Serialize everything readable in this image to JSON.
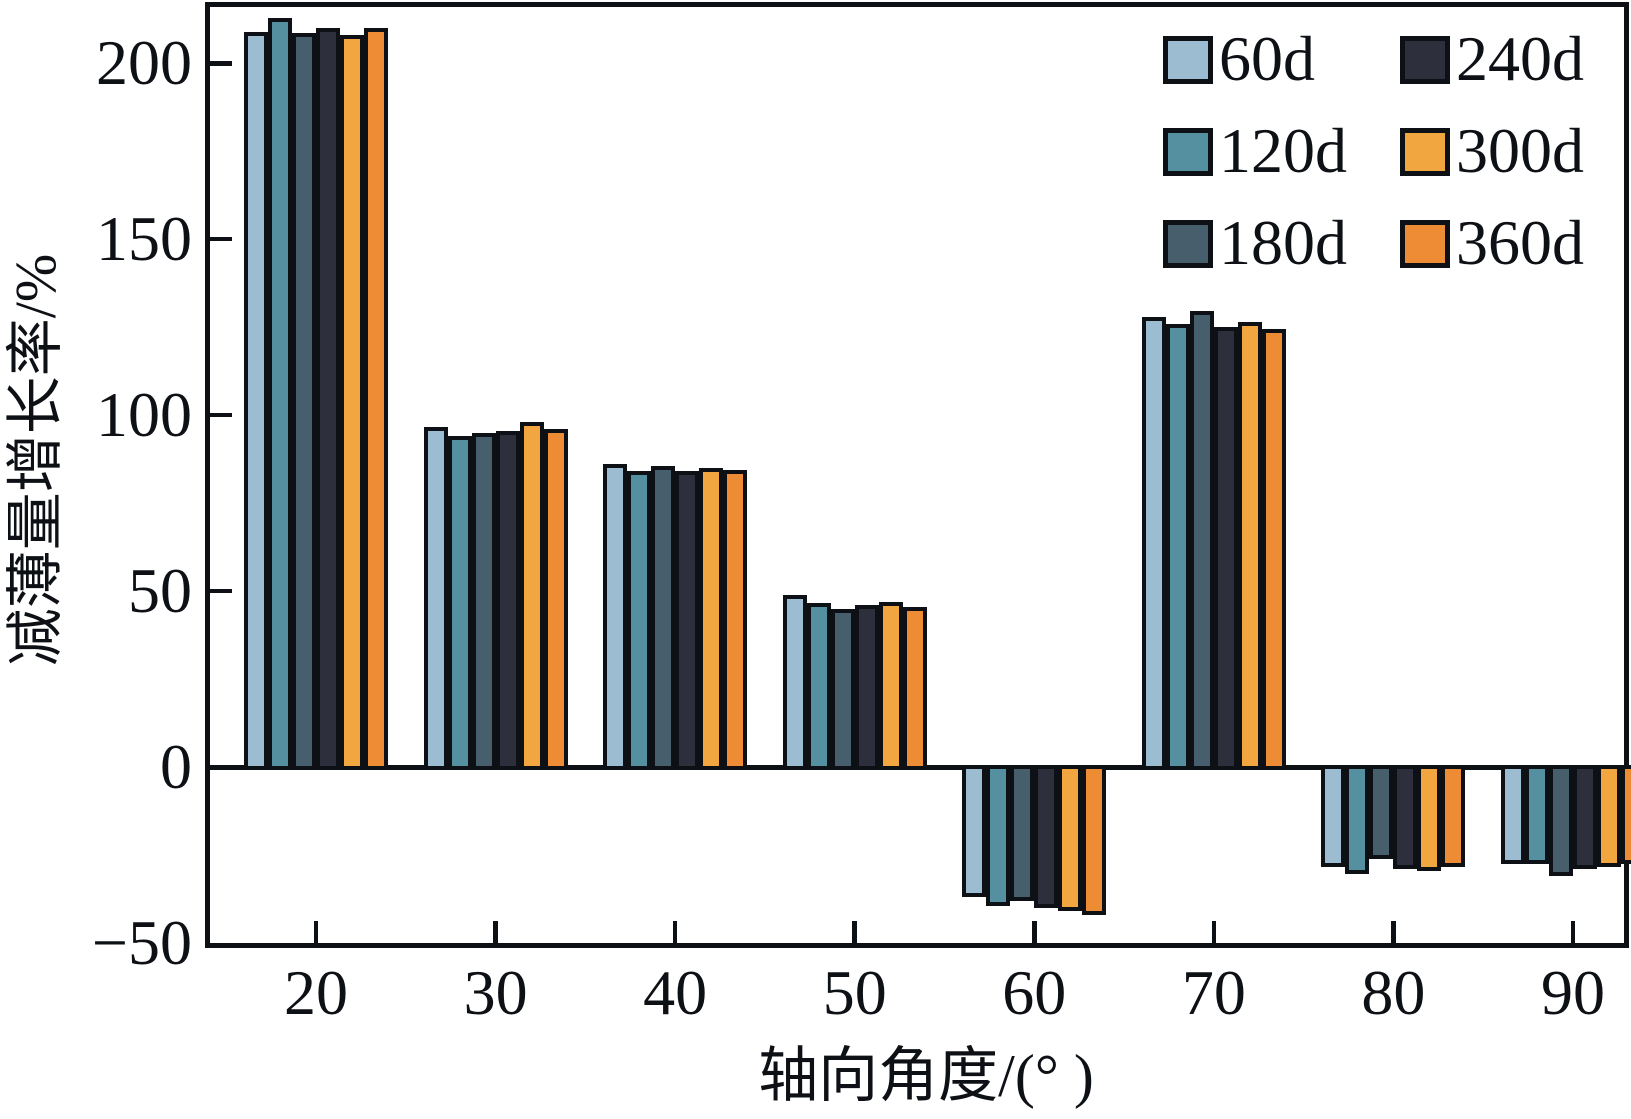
{
  "figure": {
    "background": "#ffffff",
    "axis_color": "#0d1015"
  },
  "chart_data": {
    "type": "bar",
    "title": "",
    "xlabel": "轴向角度/(° )",
    "ylabel": "减薄量增长率/%",
    "categories": [
      "20",
      "30",
      "40",
      "50",
      "60",
      "70",
      "80",
      "90"
    ],
    "series": [
      {
        "name": "60d",
        "color": "#9bbcd1",
        "values": [
          209,
          96.5,
          86,
          49,
          -37,
          128,
          -28.5,
          -27.5
        ]
      },
      {
        "name": "120d",
        "color": "#54909f",
        "values": [
          213,
          94,
          84,
          46.5,
          -39.5,
          126,
          -30.5,
          -27.5
        ]
      },
      {
        "name": "180d",
        "color": "#475f6d",
        "values": [
          208.5,
          95,
          85.5,
          45,
          -38,
          129.5,
          -26,
          -31
        ]
      },
      {
        "name": "240d",
        "color": "#2e2f3c",
        "values": [
          210,
          95.5,
          84,
          46,
          -40,
          125,
          -29,
          -29
        ]
      },
      {
        "name": "300d",
        "color": "#f1a63f",
        "values": [
          208,
          98,
          85,
          47,
          -41,
          126.5,
          -29.5,
          -28.5
        ]
      },
      {
        "name": "360d",
        "color": "#ee8c35",
        "values": [
          210,
          96,
          84.5,
          45.5,
          -42,
          124.5,
          -28.5,
          -27.5
        ]
      }
    ],
    "ylim": [
      -50,
      216
    ],
    "yticks": [
      {
        "value": 200,
        "label": "200"
      },
      {
        "value": 150,
        "label": "150"
      },
      {
        "value": 100,
        "label": "100"
      },
      {
        "value": 50,
        "label": "50"
      },
      {
        "value": 0,
        "label": "0"
      },
      {
        "value": -50,
        "label": "−50"
      }
    ],
    "grid": false,
    "legend_position": "top-right",
    "legend_columns": 2,
    "legend_order_row_major": [
      0,
      3,
      1,
      4,
      2,
      5
    ]
  }
}
